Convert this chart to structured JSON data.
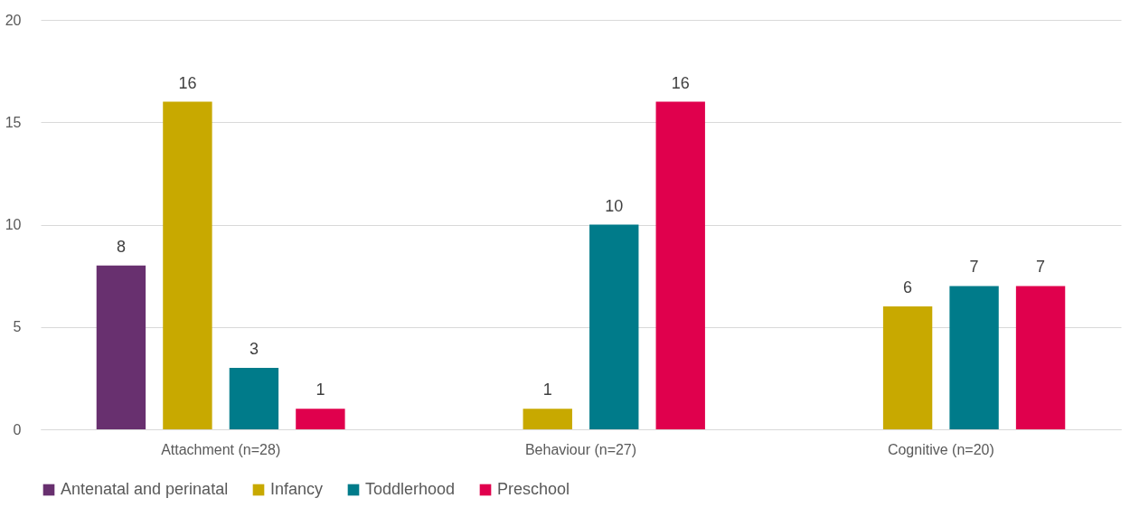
{
  "chart_data": {
    "type": "bar",
    "categories": [
      "Attachment (n=28)",
      "Behaviour (n=27)",
      "Cognitive (n=20)"
    ],
    "series": [
      {
        "name": "Antenatal and perinatal",
        "color": "#68306f",
        "values": [
          8,
          null,
          null
        ]
      },
      {
        "name": "Infancy",
        "color": "#c8a900",
        "values": [
          16,
          1,
          6
        ]
      },
      {
        "name": "Toddlerhood",
        "color": "#007b8a",
        "values": [
          3,
          10,
          7
        ]
      },
      {
        "name": "Preschool",
        "color": "#e0004d",
        "values": [
          1,
          16,
          7
        ]
      }
    ],
    "ylim": [
      0,
      20
    ],
    "yticks": [
      0,
      5,
      10,
      15,
      20
    ],
    "grid": "y",
    "legend": "bottom",
    "data_labels": true
  }
}
